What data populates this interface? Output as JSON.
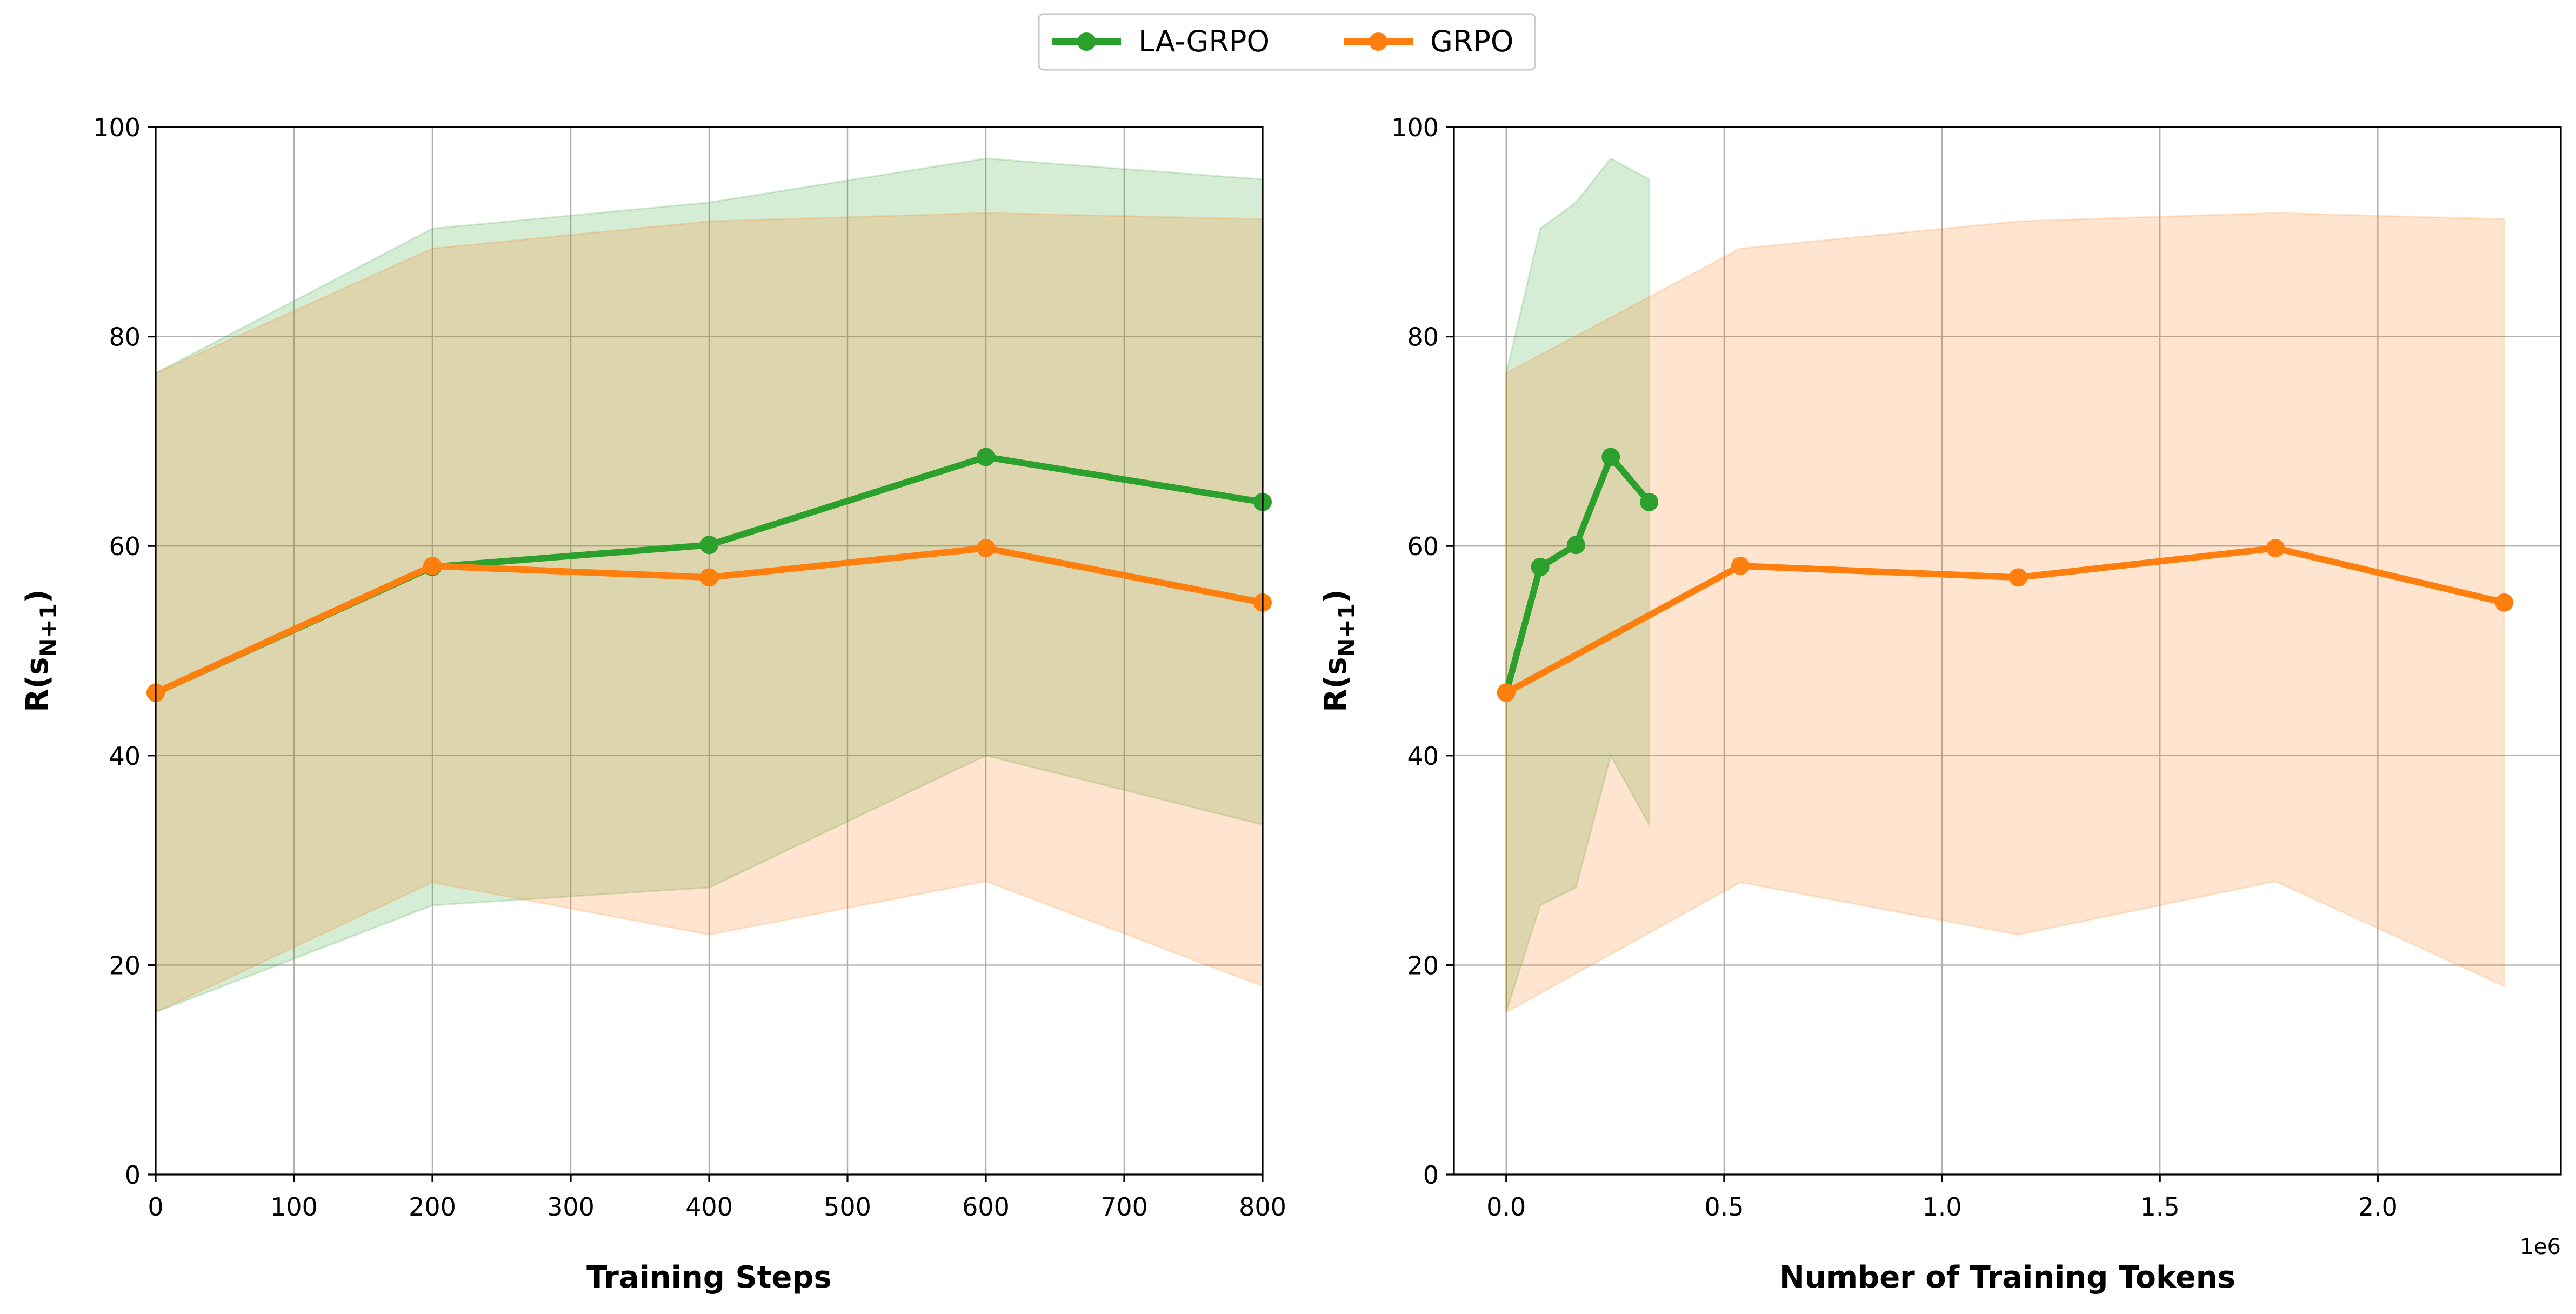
{
  "chart_data": [
    {
      "type": "line",
      "xlabel": "Training Steps",
      "ylabel_main": "R(s",
      "ylabel_sub": "N+1",
      "ylabel_close": ")",
      "xlim": [
        0,
        800
      ],
      "ylim": [
        0,
        100
      ],
      "xticks": [
        0,
        100,
        200,
        300,
        400,
        500,
        600,
        700,
        800
      ],
      "xtick_labels": [
        "0",
        "100",
        "200",
        "300",
        "400",
        "500",
        "600",
        "700",
        "800"
      ],
      "yticks": [
        0,
        20,
        40,
        60,
        80,
        100
      ],
      "ytick_labels": [
        "0",
        "20",
        "40",
        "60",
        "80",
        "100"
      ],
      "grid": true,
      "series": [
        {
          "name": "LA-GRPO",
          "color": "#2ca02c",
          "x": [
            0,
            200,
            400,
            600,
            800
          ],
          "y": [
            46.0,
            58.0,
            60.1,
            68.5,
            64.2
          ],
          "band_upper": [
            76.5,
            90.3,
            92.8,
            97.0,
            95.0
          ],
          "band_lower": [
            15.5,
            25.7,
            27.4,
            40.0,
            33.4
          ]
        },
        {
          "name": "GRPO",
          "color": "#ff7f0e",
          "x": [
            0,
            200,
            400,
            600,
            800
          ],
          "y": [
            46.0,
            58.1,
            57.0,
            59.8,
            54.6
          ],
          "band_upper": [
            76.5,
            88.4,
            91.0,
            91.8,
            91.2
          ],
          "band_lower": [
            15.5,
            27.9,
            22.9,
            28.0,
            18.0
          ]
        }
      ]
    },
    {
      "type": "line",
      "xlabel": "Number of Training Tokens",
      "ylabel_main": "R(s",
      "ylabel_sub": "N+1",
      "ylabel_close": ")",
      "xlim": [
        -120000,
        2420000
      ],
      "ylim": [
        0,
        100
      ],
      "xticks": [
        0,
        500000,
        1000000,
        1500000,
        2000000
      ],
      "xtick_labels": [
        "0.0",
        "0.5",
        "1.0",
        "1.5",
        "2.0"
      ],
      "x_offset_label": "1e6",
      "yticks": [
        0,
        20,
        40,
        60,
        80,
        100
      ],
      "ytick_labels": [
        "0",
        "20",
        "40",
        "60",
        "80",
        "100"
      ],
      "grid": true,
      "series": [
        {
          "name": "LA-GRPO",
          "color": "#2ca02c",
          "x": [
            0,
            78000,
            160000,
            240000,
            328000
          ],
          "y": [
            46.0,
            58.0,
            60.1,
            68.5,
            64.2
          ],
          "band_upper": [
            76.5,
            90.3,
            92.8,
            97.0,
            95.0
          ],
          "band_lower": [
            15.5,
            25.7,
            27.4,
            40.0,
            33.4
          ]
        },
        {
          "name": "GRPO",
          "color": "#ff7f0e",
          "x": [
            0,
            537000,
            1175000,
            1765000,
            2290000
          ],
          "y": [
            46.0,
            58.1,
            57.0,
            59.8,
            54.6
          ],
          "band_upper": [
            76.5,
            88.4,
            91.0,
            91.8,
            91.2
          ],
          "band_lower": [
            15.5,
            27.9,
            22.9,
            28.0,
            18.0
          ]
        }
      ]
    }
  ],
  "legend": {
    "placement": "top-center",
    "entries": [
      {
        "label": "LA-GRPO",
        "color": "#2ca02c"
      },
      {
        "label": "GRPO",
        "color": "#ff7f0e"
      }
    ]
  }
}
